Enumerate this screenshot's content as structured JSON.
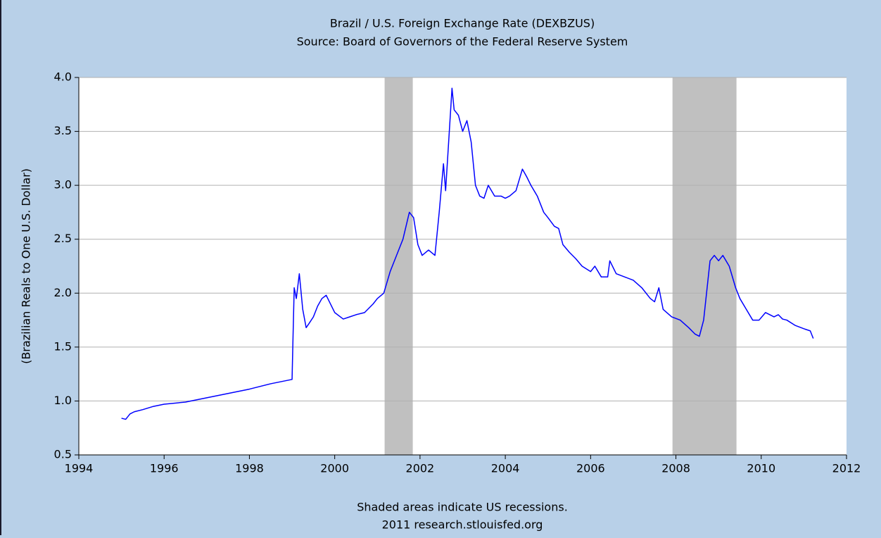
{
  "chart_data": {
    "type": "line",
    "title": "Brazil / U.S. Foreign Exchange Rate (DEXBZUS)",
    "subtitle": "Source: Board of Governors of the Federal Reserve System",
    "y_label": "(Brazilian Reals to One U.S. Dollar)",
    "notes": [
      "Shaded areas indicate US recessions.",
      "2011 research.stlouisfed.org"
    ],
    "recessions": [
      [
        2001.17,
        2001.83
      ],
      [
        2007.92,
        2009.42
      ]
    ],
    "recession_color": "#c0c0c0",
    "xlim": [
      1994,
      2012
    ],
    "xticks": [
      1994,
      1996,
      1998,
      2000,
      2002,
      2004,
      2006,
      2008,
      2010,
      2012
    ],
    "ylim": [
      0.5,
      4.0
    ],
    "yticks": [
      0.5,
      {
        "value": 1,
        "label": "1.0"
      },
      1.5,
      {
        "value": 2,
        "label": "2.0"
      },
      2.5,
      {
        "value": 3,
        "label": "3.0"
      },
      3.5,
      {
        "value": 4,
        "label": "4.0"
      }
    ],
    "grid": true,
    "series": [
      {
        "name": "DEXBZUS",
        "color": "#0000ff",
        "x": [
          1995.0,
          1995.1,
          1995.2,
          1995.3,
          1995.5,
          1995.75,
          1996.0,
          1996.5,
          1997.0,
          1997.5,
          1998.0,
          1998.5,
          1999.0,
          1999.02,
          1999.05,
          1999.1,
          1999.17,
          1999.25,
          1999.33,
          1999.4,
          1999.5,
          1999.6,
          1999.7,
          1999.8,
          1999.9,
          2000.0,
          2000.2,
          2000.35,
          2000.5,
          2000.7,
          2000.9,
          2001.0,
          2001.15,
          2001.3,
          2001.5,
          2001.6,
          2001.75,
          2001.85,
          2001.95,
          2002.05,
          2002.2,
          2002.35,
          2002.45,
          2002.55,
          2002.6,
          2002.75,
          2002.8,
          2002.9,
          2003.0,
          2003.1,
          2003.2,
          2003.3,
          2003.4,
          2003.5,
          2003.6,
          2003.75,
          2003.9,
          2004.0,
          2004.1,
          2004.25,
          2004.4,
          2004.5,
          2004.6,
          2004.75,
          2004.9,
          2005.0,
          2005.15,
          2005.25,
          2005.35,
          2005.5,
          2005.65,
          2005.8,
          2006.0,
          2006.1,
          2006.25,
          2006.4,
          2006.45,
          2006.6,
          2006.8,
          2007.0,
          2007.2,
          2007.4,
          2007.5,
          2007.6,
          2007.7,
          2007.9,
          2008.1,
          2008.3,
          2008.45,
          2008.55,
          2008.65,
          2008.8,
          2008.9,
          2009.0,
          2009.1,
          2009.25,
          2009.4,
          2009.5,
          2009.65,
          2009.8,
          2009.95,
          2010.1,
          2010.3,
          2010.4,
          2010.5,
          2010.6,
          2010.8,
          2011.0,
          2011.15,
          2011.22
        ],
        "values": [
          0.84,
          0.83,
          0.88,
          0.9,
          0.92,
          0.95,
          0.97,
          0.99,
          1.03,
          1.07,
          1.11,
          1.16,
          1.2,
          1.55,
          2.05,
          1.95,
          2.18,
          1.85,
          1.68,
          1.72,
          1.78,
          1.88,
          1.95,
          1.98,
          1.9,
          1.82,
          1.76,
          1.78,
          1.8,
          1.82,
          1.9,
          1.95,
          2.0,
          2.2,
          2.4,
          2.5,
          2.75,
          2.7,
          2.45,
          2.35,
          2.4,
          2.35,
          2.75,
          3.2,
          2.95,
          3.9,
          3.7,
          3.65,
          3.5,
          3.6,
          3.4,
          3.0,
          2.9,
          2.88,
          3.0,
          2.9,
          2.9,
          2.88,
          2.9,
          2.95,
          3.15,
          3.08,
          3.0,
          2.9,
          2.75,
          2.7,
          2.62,
          2.6,
          2.45,
          2.38,
          2.32,
          2.25,
          2.2,
          2.25,
          2.15,
          2.15,
          2.3,
          2.18,
          2.15,
          2.12,
          2.05,
          1.95,
          1.92,
          2.05,
          1.85,
          1.78,
          1.75,
          1.68,
          1.62,
          1.6,
          1.75,
          2.3,
          2.35,
          2.3,
          2.35,
          2.25,
          2.05,
          1.95,
          1.85,
          1.75,
          1.75,
          1.82,
          1.78,
          1.8,
          1.76,
          1.75,
          1.7,
          1.67,
          1.65,
          1.58
        ]
      }
    ]
  }
}
